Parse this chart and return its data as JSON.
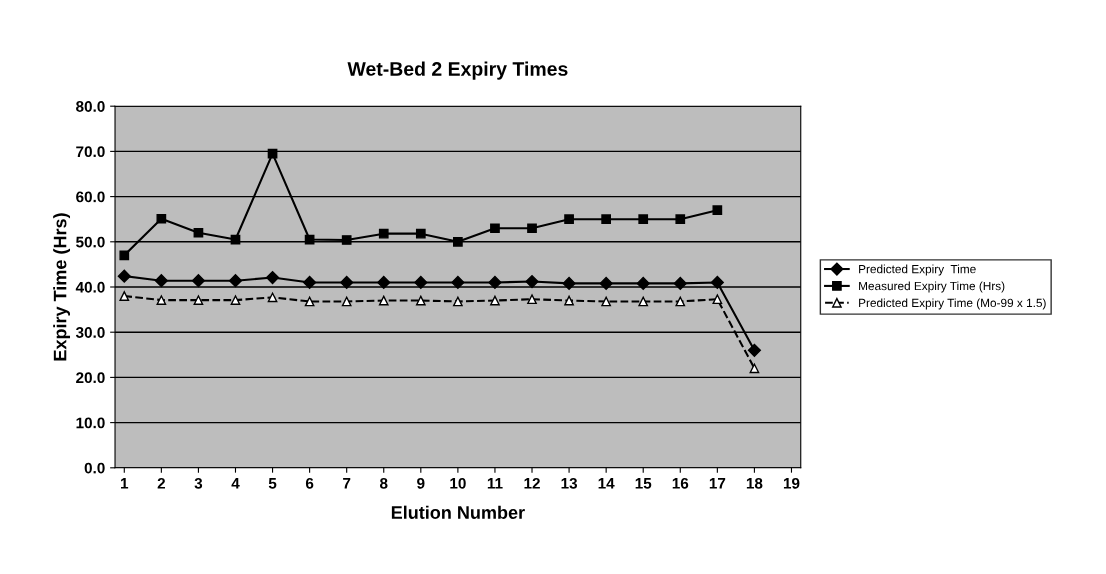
{
  "chart_data": {
    "type": "line",
    "title": "Wet-Bed 2 Expiry Times",
    "xlabel": "Elution Number",
    "ylabel": "Expiry Time (Hrs)",
    "categories": [
      "1",
      "2",
      "3",
      "4",
      "5",
      "6",
      "7",
      "8",
      "9",
      "10",
      "11",
      "12",
      "13",
      "14",
      "15",
      "16",
      "17",
      "18",
      "19"
    ],
    "series": [
      {
        "name": "Predicted Expiry  Time",
        "color": "#000000",
        "marker": "diamond",
        "line_style": "solid",
        "values": [
          42.4,
          41.4,
          41.4,
          41.4,
          42.1,
          41.0,
          41.0,
          41.0,
          41.0,
          41.0,
          41.0,
          41.2,
          40.8,
          40.8,
          40.8,
          40.8,
          41.0,
          26.0,
          null
        ]
      },
      {
        "name": "Measured Expiry Time (Hrs)",
        "color": "#000000",
        "marker": "square",
        "line_style": "solid",
        "values": [
          47.0,
          55.1,
          52.0,
          50.5,
          69.5,
          50.5,
          50.4,
          51.8,
          51.8,
          50.0,
          53.0,
          53.0,
          55.0,
          55.0,
          55.0,
          55.0,
          57.0,
          null,
          null
        ]
      },
      {
        "name": "Predicted Expiry Time (Mo-99 x 1.5)",
        "color": "#000000",
        "marker": "triangle",
        "line_style": "dashed",
        "values": [
          38.0,
          37.1,
          37.1,
          37.1,
          37.7,
          36.8,
          36.8,
          37.0,
          37.0,
          36.8,
          37.0,
          37.3,
          37.0,
          36.8,
          36.8,
          36.8,
          37.3,
          22.0,
          null
        ]
      }
    ],
    "ylim": [
      0,
      80
    ],
    "yticks": [
      {
        "value": 0,
        "label": "0.0"
      },
      {
        "value": 10,
        "label": "10.0"
      },
      {
        "value": 20,
        "label": "20.0"
      },
      {
        "value": 30,
        "label": "30.0"
      },
      {
        "value": 40,
        "label": "40.0"
      },
      {
        "value": 50,
        "label": "50.0"
      },
      {
        "value": 60,
        "label": "60.0"
      },
      {
        "value": 70,
        "label": "70.0"
      },
      {
        "value": 80,
        "label": "80.0"
      }
    ],
    "grid": "y",
    "legend": "right"
  }
}
